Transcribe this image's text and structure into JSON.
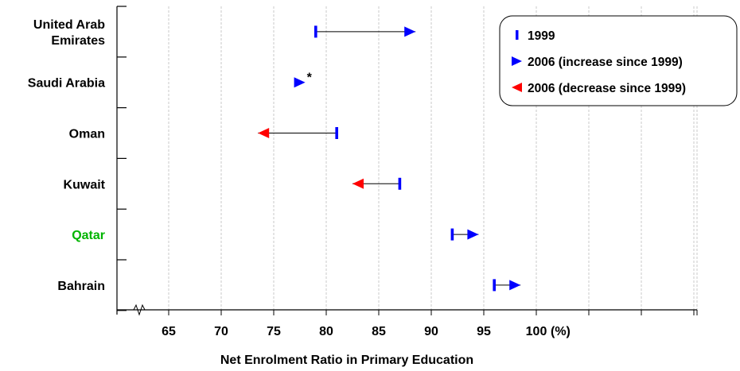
{
  "chart_data": {
    "type": "dot-range",
    "xlabel": "Net Enrolment Ratio in Primary Education",
    "unit_label": "(%)",
    "tick_values": [
      65,
      70,
      75,
      80,
      85,
      90,
      95,
      100
    ],
    "xlim": [
      60,
      115
    ],
    "grid": true,
    "legend_position": "top-right",
    "categories": [
      {
        "name": "United Arab Emirates",
        "lines": [
          "United Arab",
          "Emirates"
        ],
        "v1999": 79,
        "v2006": 88.5,
        "direction": "increase",
        "highlight": false
      },
      {
        "name": "Saudi Arabia",
        "lines": [
          "Saudi Arabia"
        ],
        "v1999": null,
        "v2006": 78,
        "direction": "increase",
        "note": "*",
        "highlight": false
      },
      {
        "name": "Oman",
        "lines": [
          "Oman"
        ],
        "v1999": 81,
        "v2006": 73.5,
        "direction": "decrease",
        "highlight": false
      },
      {
        "name": "Kuwait",
        "lines": [
          "Kuwait"
        ],
        "v1999": 87,
        "v2006": 82.5,
        "direction": "decrease",
        "highlight": false
      },
      {
        "name": "Qatar",
        "lines": [
          "Qatar"
        ],
        "v1999": 92,
        "v2006": 94.5,
        "direction": "increase",
        "highlight": true
      },
      {
        "name": "Bahrain",
        "lines": [
          "Bahrain"
        ],
        "v1999": 96,
        "v2006": 98.5,
        "direction": "increase",
        "highlight": false
      }
    ],
    "legend": [
      {
        "key": "1999",
        "label": "1999",
        "marker": "bar",
        "color": "#0000ff"
      },
      {
        "key": "increase",
        "label": "2006 (increase since 1999)",
        "marker": "triangle-right",
        "color": "#0000ff"
      },
      {
        "key": "decrease",
        "label": "2006 (decrease since 1999)",
        "marker": "triangle-left",
        "color": "#ff0000"
      }
    ],
    "colors": {
      "blue": "#0000ff",
      "red": "#ff0000",
      "highlight": "#00b400",
      "grid": "#c8c8c8",
      "axis": "#000000"
    }
  }
}
